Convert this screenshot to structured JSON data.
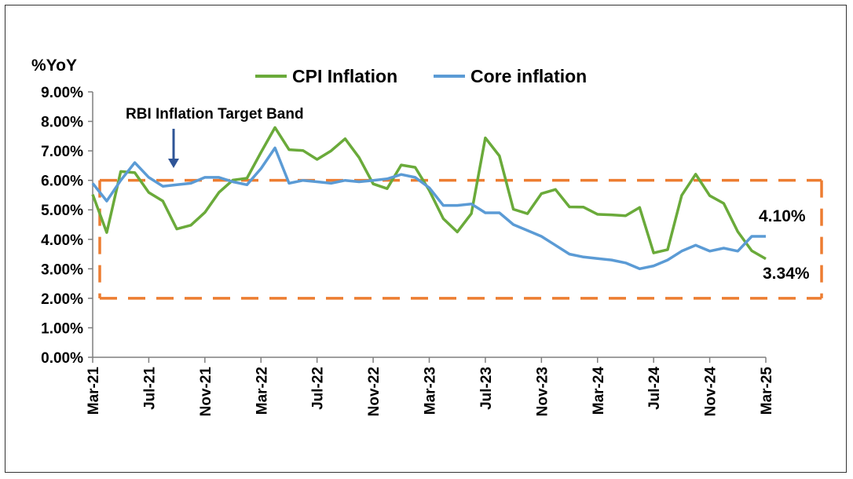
{
  "chart_data": {
    "type": "line",
    "ylabel": "%YoY",
    "ylim": [
      0,
      9
    ],
    "yticks": [
      "0.00%",
      "1.00%",
      "2.00%",
      "3.00%",
      "4.00%",
      "5.00%",
      "6.00%",
      "7.00%",
      "8.00%",
      "9.00%"
    ],
    "x_tick_labels": [
      "Mar-21",
      "Jul-21",
      "Nov-21",
      "Mar-22",
      "Jul-22",
      "Nov-22",
      "Mar-23",
      "Jul-23",
      "Nov-23",
      "Mar-24",
      "Jul-24",
      "Nov-24",
      "Mar-25"
    ],
    "x_tick_every": 4,
    "x": [
      "Mar-21",
      "Apr-21",
      "May-21",
      "Jun-21",
      "Jul-21",
      "Aug-21",
      "Sep-21",
      "Oct-21",
      "Nov-21",
      "Dec-21",
      "Jan-22",
      "Feb-22",
      "Mar-22",
      "Apr-22",
      "May-22",
      "Jun-22",
      "Jul-22",
      "Aug-22",
      "Sep-22",
      "Oct-22",
      "Nov-22",
      "Dec-22",
      "Jan-23",
      "Feb-23",
      "Mar-23",
      "Apr-23",
      "May-23",
      "Jun-23",
      "Jul-23",
      "Aug-23",
      "Sep-23",
      "Oct-23",
      "Nov-23",
      "Dec-23",
      "Jan-24",
      "Feb-24",
      "Mar-24",
      "Apr-24",
      "May-24",
      "Jun-24",
      "Jul-24",
      "Aug-24",
      "Sep-24",
      "Oct-24",
      "Nov-24",
      "Dec-24",
      "Jan-25",
      "Feb-25",
      "Mar-25"
    ],
    "series": [
      {
        "name": "CPI Inflation",
        "color": "#6aaa3a",
        "values": [
          5.52,
          4.23,
          6.3,
          6.26,
          5.59,
          5.3,
          4.35,
          4.48,
          4.91,
          5.59,
          6.01,
          6.07,
          6.95,
          7.79,
          7.04,
          7.01,
          6.71,
          7.0,
          7.41,
          6.77,
          5.88,
          5.72,
          6.52,
          6.44,
          5.66,
          4.7,
          4.25,
          4.87,
          7.44,
          6.83,
          5.02,
          4.87,
          5.55,
          5.69,
          5.1,
          5.09,
          4.85,
          4.83,
          4.8,
          5.08,
          3.54,
          3.65,
          5.49,
          6.21,
          5.48,
          5.22,
          4.26,
          3.61,
          3.34
        ]
      },
      {
        "name": "Core inflation",
        "color": "#5b9bd5",
        "values": [
          5.9,
          5.3,
          6.0,
          6.6,
          6.1,
          5.8,
          5.85,
          5.9,
          6.1,
          6.1,
          5.95,
          5.85,
          6.4,
          7.1,
          5.9,
          6.0,
          5.95,
          5.9,
          6.0,
          5.95,
          6.0,
          6.05,
          6.2,
          6.1,
          5.75,
          5.15,
          5.15,
          5.2,
          4.9,
          4.9,
          4.5,
          4.3,
          4.1,
          3.8,
          3.5,
          3.4,
          3.35,
          3.3,
          3.2,
          3.0,
          3.1,
          3.3,
          3.6,
          3.8,
          3.6,
          3.7,
          3.6,
          4.1,
          4.1
        ]
      }
    ],
    "target_band": [
      2,
      6
    ],
    "annotation": "RBI Inflation Target Band",
    "end_labels": {
      "core": "4.10%",
      "cpi": "3.34%"
    },
    "legend_position": "top",
    "band_color": "#ed7d31",
    "axis_color": "#7f7f7f"
  }
}
